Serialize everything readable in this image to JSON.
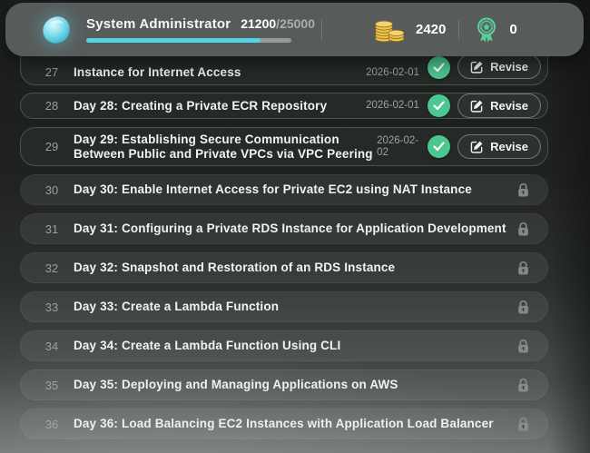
{
  "header": {
    "title": "System Administrator",
    "xp_current": "21200",
    "xp_separator": "/",
    "xp_total": "25000",
    "xp_percent": 85,
    "coins": "2420",
    "badges": "0"
  },
  "icons": {
    "logo": "droplet-logo-icon",
    "coins": "coin-stack-icon",
    "badges": "medal-ribbon-icon",
    "completed": "check-circle-icon",
    "locked": "lock-icon",
    "revise": "edit-square-icon"
  },
  "colors": {
    "accent": "#55d4e9",
    "success": "#4cc78f",
    "coin-gold": "#eec14d",
    "medal-green": "#58d097",
    "header-bg": "#575c5b"
  },
  "list": {
    "rows": [
      {
        "num": "27",
        "title": "Instance for Internet Access",
        "date": "2026-02-01",
        "status": "completed",
        "action": "Revise",
        "clipped": true
      },
      {
        "num": "28",
        "title": "Day 28: Creating a Private ECR Repository",
        "date": "2026-02-01",
        "status": "completed",
        "action": "Revise"
      },
      {
        "num": "29",
        "title": "Day 29: Establishing Secure Communication Between Public and Private VPCs via VPC Peering",
        "date": "2026-02-02",
        "status": "completed",
        "action": "Revise",
        "multiline": true,
        "date_wrap": true
      },
      {
        "num": "30",
        "title": "Day 30: Enable Internet Access for Private EC2 using NAT Instance",
        "status": "locked"
      },
      {
        "num": "31",
        "title": "Day 31: Configuring a Private RDS Instance for Application Development",
        "status": "locked"
      },
      {
        "num": "32",
        "title": "Day 32: Snapshot and Restoration of an RDS Instance",
        "status": "locked"
      },
      {
        "num": "33",
        "title": "Day 33: Create a Lambda Function",
        "status": "locked"
      },
      {
        "num": "34",
        "title": "Day 34: Create a Lambda Function Using CLI",
        "status": "locked"
      },
      {
        "num": "35",
        "title": "Day 35: Deploying and Managing Applications on AWS",
        "status": "locked"
      },
      {
        "num": "36",
        "title": "Day 36: Load Balancing EC2 Instances with Application Load Balancer",
        "status": "locked"
      }
    ]
  }
}
